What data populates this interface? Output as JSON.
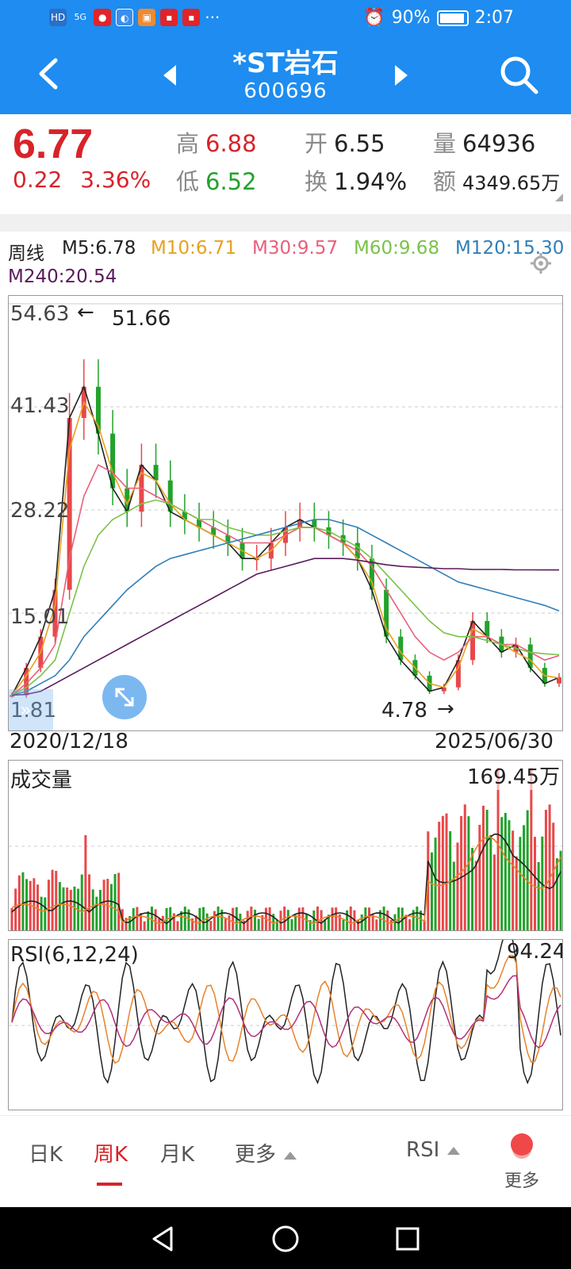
{
  "status": {
    "net": "HD",
    "signal": "5G",
    "battery": "90%",
    "time": "2:07"
  },
  "header": {
    "title": "*ST岩石",
    "code": "600696"
  },
  "quote": {
    "price": "6.77",
    "change": "0.22",
    "change_pct": "3.36%",
    "high_label": "高",
    "high": "6.88",
    "low_label": "低",
    "low": "6.52",
    "open_label": "开",
    "open": "6.55",
    "turnover_label": "换",
    "turnover": "1.94%",
    "volume_label": "量",
    "volume": "64936",
    "amount_label": "额",
    "amount": "4349.65万"
  },
  "ma": {
    "period": "周线",
    "m5": "M5:6.78",
    "m10": "M10:6.71",
    "m30": "M30:9.57",
    "m60": "M60:9.68",
    "m120": "M120:15.30",
    "m240": "M240:20.54",
    "colors": {
      "m5": "#222222",
      "m10": "#e8a020",
      "m30": "#e8607a",
      "m60": "#7ac24a",
      "m120": "#2f7fb8",
      "m240": "#5a1a5a"
    }
  },
  "kchart": {
    "ticks": [
      "54.63",
      "41.43",
      "28.22",
      "15.01",
      "1.81"
    ],
    "max_note": "51.66",
    "min_note": "4.78",
    "start_date": "2020/12/18",
    "end_date": "2025/06/30"
  },
  "volume": {
    "title": "成交量",
    "max": "169.45万"
  },
  "rsi": {
    "title": "RSI(6,12,24)",
    "max": "94.24"
  },
  "tabs": {
    "day": "日K",
    "week": "周K",
    "month": "月K",
    "more": "更多",
    "indicator": "RSI",
    "more2": "更多"
  },
  "chart_data": {
    "type": "line",
    "title": "",
    "x_range": [
      "2020/12/18",
      "2025/06/30"
    ],
    "ylim": [
      1.81,
      54.63
    ],
    "y_ticks": [
      54.63,
      41.43,
      28.22,
      15.01,
      1.81
    ],
    "annotations": [
      "51.66",
      "4.78"
    ],
    "series": [
      {
        "name": "M5",
        "values": [
          4.5,
          8,
          12,
          18,
          40,
          44,
          38,
          31,
          28,
          34,
          32,
          28,
          27,
          26,
          25,
          24,
          22,
          22,
          24,
          26,
          27,
          26,
          25,
          24,
          22,
          18,
          12,
          9,
          7,
          5,
          5.5,
          9,
          14,
          12,
          10,
          11,
          8,
          6,
          6.78
        ]
      },
      {
        "name": "M10",
        "values": [
          4.5,
          7,
          10,
          16,
          36,
          42,
          39,
          33,
          29,
          33,
          32,
          29,
          27,
          26,
          25,
          24,
          23,
          22,
          23,
          25,
          26,
          26,
          25,
          24,
          22,
          19,
          13,
          10,
          8,
          6,
          5.5,
          8,
          13,
          12,
          11,
          10,
          9,
          7,
          6.71
        ]
      },
      {
        "name": "M30",
        "values": [
          4.5,
          6,
          8,
          11,
          22,
          30,
          34,
          33,
          31,
          31,
          30,
          29,
          28,
          27,
          26,
          25,
          24,
          24,
          24,
          25,
          26,
          26,
          25,
          24,
          23,
          21,
          18,
          15,
          12,
          10,
          9,
          10,
          12,
          12,
          11,
          11,
          10,
          9,
          9.57
        ]
      },
      {
        "name": "M60",
        "values": [
          4.5,
          5.5,
          7,
          9,
          15,
          21,
          25,
          27,
          28,
          29,
          29.5,
          29,
          28,
          27,
          27,
          26,
          25.5,
          25,
          25,
          25.5,
          26,
          26,
          25.5,
          24.5,
          23.5,
          22,
          20,
          18,
          16,
          14,
          12.5,
          12,
          12,
          11.5,
          11,
          10.5,
          10,
          9.8,
          9.68
        ]
      },
      {
        "name": "M120",
        "values": [
          4.5,
          5,
          6,
          7,
          9,
          12,
          14,
          16,
          18,
          19.5,
          21,
          22,
          22.5,
          23,
          23.5,
          24,
          24.5,
          25,
          25.5,
          26,
          26.5,
          27,
          27,
          26.5,
          26,
          25,
          24,
          23,
          22,
          21,
          20,
          19,
          18.5,
          18,
          17.5,
          17,
          16.5,
          16,
          15.3
        ]
      },
      {
        "name": "M240",
        "values": [
          4.5,
          4.6,
          5,
          6,
          7,
          8,
          9,
          10,
          11,
          12,
          13,
          14,
          15,
          16,
          17,
          18,
          19,
          20,
          20.5,
          21,
          21.5,
          22,
          22,
          22,
          21.8,
          21.5,
          21.2,
          21,
          20.9,
          20.8,
          20.7,
          20.7,
          20.6,
          20.6,
          20.6,
          20.55,
          20.55,
          20.54,
          20.54
        ]
      }
    ]
  }
}
